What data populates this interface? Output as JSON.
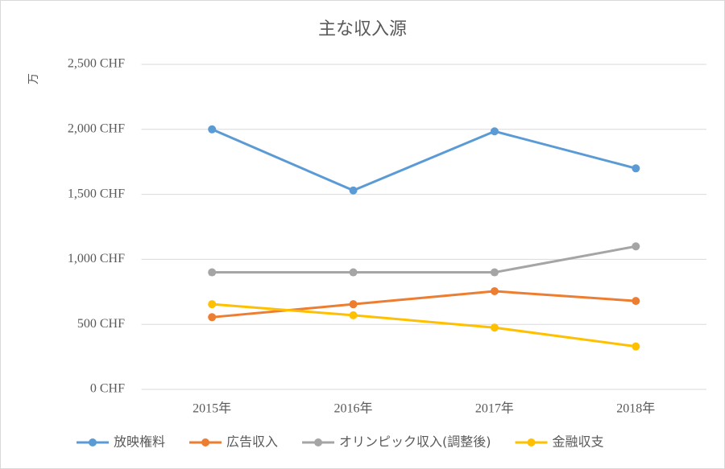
{
  "chart_data": {
    "type": "line",
    "title": "主な収入源",
    "y_label": "万",
    "categories": [
      "2015年",
      "2016年",
      "2017年",
      "2018年"
    ],
    "series": [
      {
        "name": "放映権料",
        "color": "#5b9bd5",
        "values": [
          2000,
          1530,
          1985,
          1700
        ]
      },
      {
        "name": "広告収入",
        "color": "#ed7d31",
        "values": [
          555,
          655,
          755,
          680
        ]
      },
      {
        "name": "オリンピック収入(調整後)",
        "color": "#a5a5a5",
        "values": [
          900,
          900,
          900,
          1100
        ]
      },
      {
        "name": "金融収支",
        "color": "#ffc000",
        "values": [
          655,
          570,
          475,
          330
        ]
      }
    ],
    "ylim": [
      0,
      2500
    ],
    "yticks": [
      {
        "value": 0,
        "label": "0 CHF"
      },
      {
        "value": 500,
        "label": "500 CHF"
      },
      {
        "value": 1000,
        "label": "1,000 CHF"
      },
      {
        "value": 1500,
        "label": "1,500 CHF"
      },
      {
        "value": 2000,
        "label": "2,000 CHF"
      },
      {
        "value": 2500,
        "label": "2,500 CHF"
      }
    ],
    "grid": true,
    "legend": "bottom"
  }
}
